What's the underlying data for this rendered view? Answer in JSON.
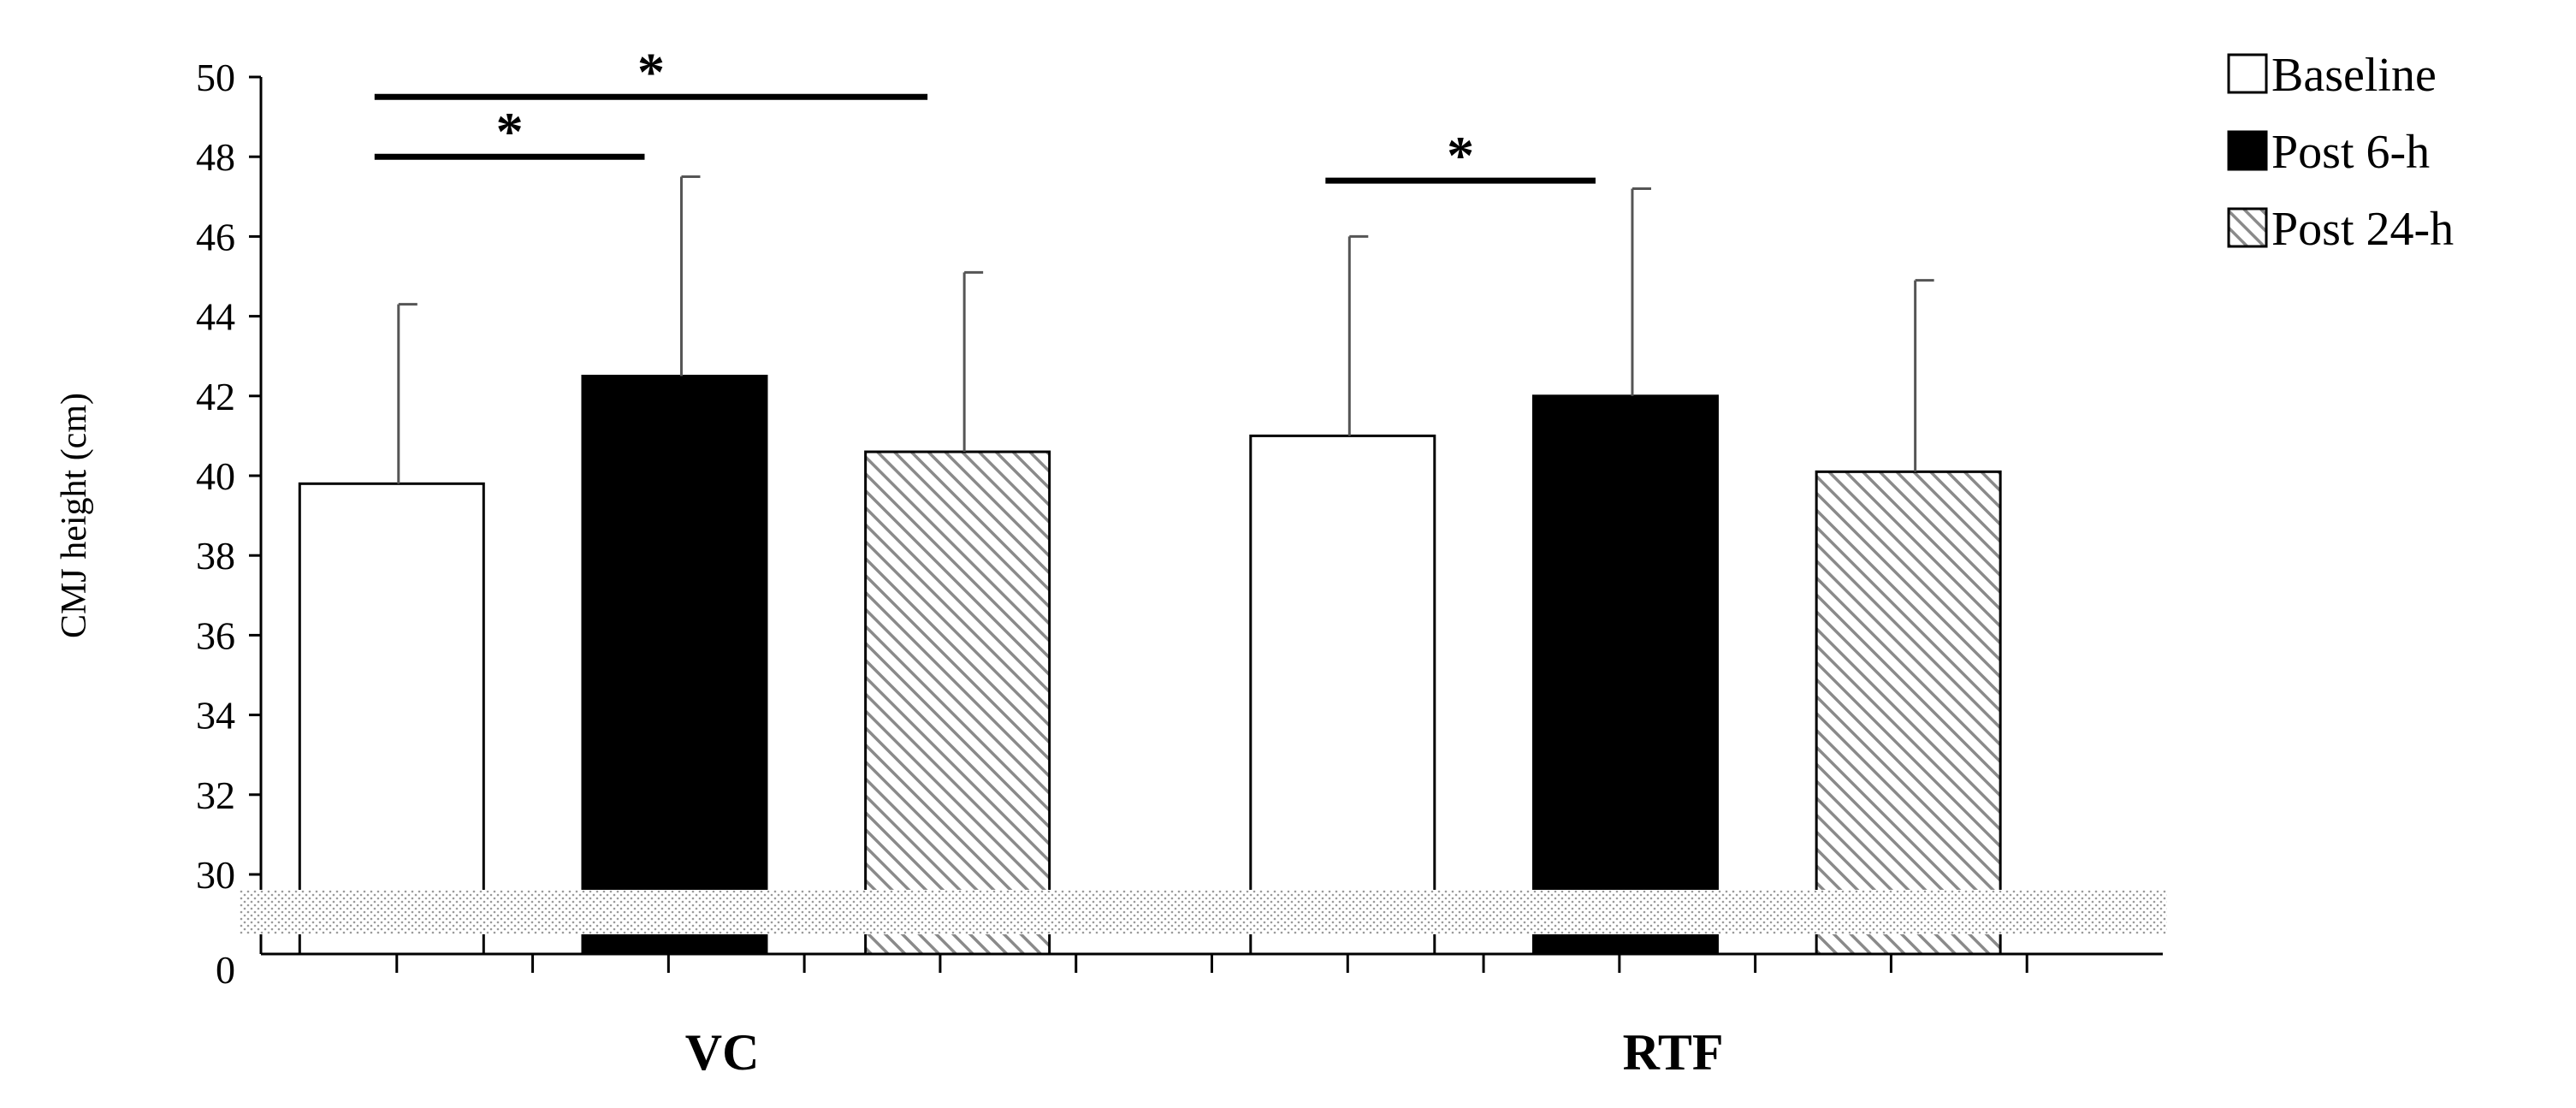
{
  "chart_data": {
    "type": "bar",
    "title": "",
    "ylabel": "CMJ height (cm)",
    "xlabel": "",
    "categories": [
      "VC",
      "RTF"
    ],
    "series": [
      {
        "name": "Baseline",
        "values": [
          39.8,
          41.0
        ],
        "errors": [
          4.5,
          5.0
        ],
        "pattern": "white"
      },
      {
        "name": "Post 6-h",
        "values": [
          42.5,
          42.0
        ],
        "errors": [
          5.0,
          5.2
        ],
        "pattern": "black"
      },
      {
        "name": "Post 24-h",
        "values": [
          40.6,
          40.1
        ],
        "errors": [
          4.5,
          4.8
        ],
        "pattern": "hatched"
      }
    ],
    "ylim": [
      30,
      50
    ],
    "yticks": [
      "0",
      "30",
      "32",
      "34",
      "36",
      "38",
      "40",
      "42",
      "44",
      "46",
      "48",
      "50"
    ],
    "axis_break": true,
    "legend_position": "top-right",
    "grid": false,
    "significance": [
      {
        "category": "VC",
        "from_series": 0,
        "to_series": 1,
        "label": "*"
      },
      {
        "category": "VC",
        "from_series": 0,
        "to_series": 2,
        "label": "*"
      },
      {
        "category": "RTF",
        "from_series": 0,
        "to_series": 1,
        "label": "*"
      }
    ]
  }
}
